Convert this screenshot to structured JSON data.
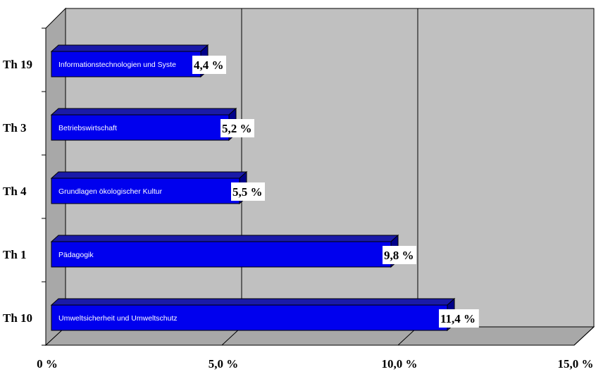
{
  "chart_data": {
    "type": "bar",
    "orientation": "horizontal",
    "three_d": true,
    "categories": [
      "Th 19",
      "Th 3",
      "Th 4",
      "Th 1",
      "Th 10"
    ],
    "series": [
      {
        "values": [
          4.4,
          5.2,
          5.5,
          9.8,
          11.4
        ],
        "bar_labels": [
          "Informationstechnologien und Syste",
          "Betriebswirtschaft",
          "Grundlagen ökologischer Kultur",
          "Pädagogik",
          "Umweltsicherheit und Umweltschutz"
        ],
        "value_labels": [
          "4,4 %",
          "5,2 %",
          "5,5 %",
          "9,8 %",
          "11,4 %"
        ]
      }
    ],
    "x_ticks": [
      "0 %",
      "5,0 %",
      "10,0 %",
      "15,0 %"
    ],
    "xlim": [
      0,
      15
    ],
    "grid": true,
    "colors": {
      "bar": "#0000ee",
      "bar_top": "#1a1aa8",
      "bar_side": "#00008a",
      "wall": "#c0c0c0",
      "floor": "#a8a8a8"
    }
  }
}
